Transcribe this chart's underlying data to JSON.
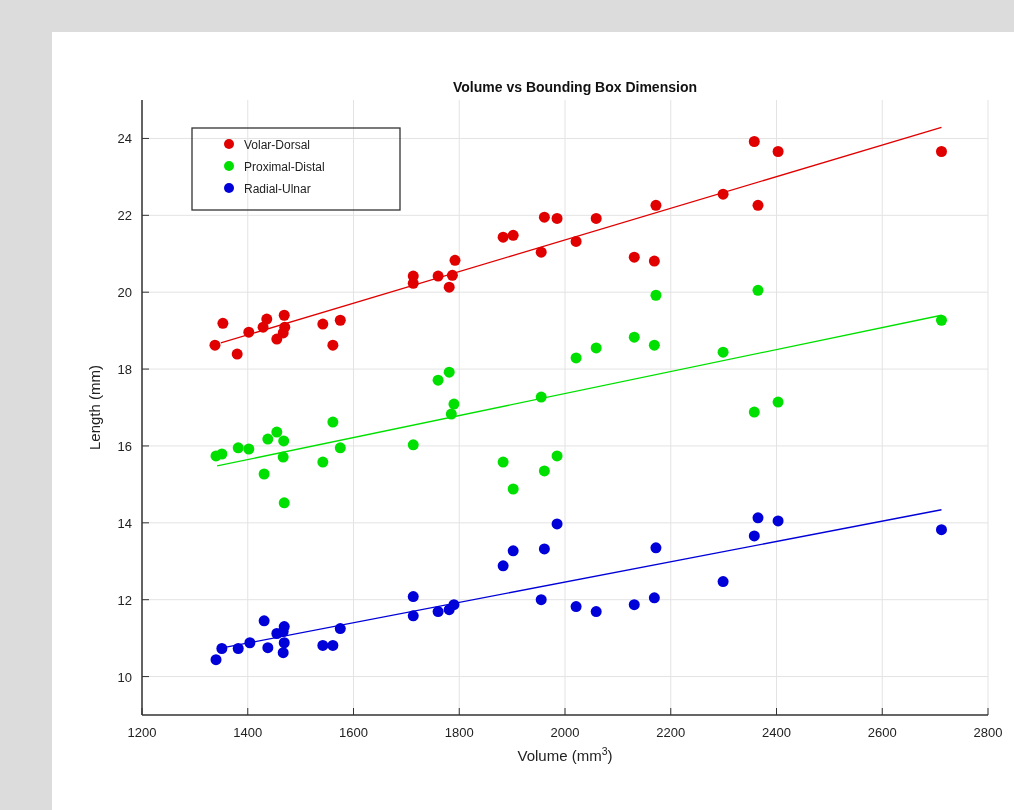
{
  "chart_data": {
    "type": "scatter",
    "title": "Volume vs Bounding Box Dimension",
    "xlabel": "Volume (mm$^{3}$)",
    "ylabel": "Length (mm)",
    "xlim": [
      1200,
      2800
    ],
    "xticks": [
      1200,
      1400,
      1600,
      1800,
      2000,
      2200,
      2400,
      2600,
      2800
    ],
    "ylim": [
      9,
      25
    ],
    "yticks": [
      10,
      12,
      14,
      16,
      18,
      20,
      22,
      24
    ],
    "grid": true,
    "legend": "top left",
    "series": [
      {
        "name": "Volar-Dorsal",
        "color": "#e00000",
        "marker": "circle",
        "x": [
          1338,
          1353,
          1380,
          1402,
          1429,
          1436,
          1455,
          1467,
          1470,
          1469,
          1542,
          1561,
          1575,
          1713,
          1713,
          1760,
          1781,
          1787,
          1792,
          1883,
          1902,
          1961,
          1985,
          1955,
          2021,
          2059,
          2172,
          2131,
          2169,
          2299,
          2358,
          2365,
          2403,
          2712
        ],
        "values": [
          18.62,
          19.19,
          18.39,
          18.96,
          19.09,
          19.3,
          18.78,
          18.94,
          19.09,
          19.4,
          19.17,
          18.62,
          19.27,
          20.42,
          20.23,
          20.42,
          20.13,
          20.44,
          20.83,
          21.43,
          21.48,
          21.95,
          21.92,
          21.04,
          21.32,
          21.92,
          22.26,
          20.91,
          20.81,
          22.55,
          23.92,
          22.26,
          23.66,
          23.66
        ]
      },
      {
        "name": "Proximal-Distal",
        "color": "#00e000",
        "marker": "circle",
        "x": [
          1340,
          1351,
          1382,
          1402,
          1431,
          1438,
          1455,
          1468,
          1467,
          1469,
          1542,
          1561,
          1575,
          1713,
          1760,
          1781,
          1790,
          1785,
          1883,
          1902,
          1961,
          1985,
          1955,
          2021,
          2059,
          2131,
          2169,
          2172,
          2299,
          2358,
          2403,
          2365,
          2712
        ],
        "values": [
          15.74,
          15.79,
          15.95,
          15.92,
          15.27,
          16.18,
          16.36,
          16.13,
          15.71,
          14.52,
          15.58,
          16.62,
          15.95,
          16.03,
          17.71,
          17.92,
          17.09,
          16.83,
          15.58,
          14.88,
          15.35,
          15.74,
          17.27,
          18.29,
          18.55,
          18.83,
          18.62,
          19.92,
          18.44,
          16.88,
          17.14,
          20.05,
          19.27
        ]
      },
      {
        "name": "Radial-Ulnar",
        "color": "#0000d8",
        "marker": "circle",
        "x": [
          1340,
          1351,
          1382,
          1404,
          1431,
          1438,
          1455,
          1469,
          1467,
          1469,
          1467,
          1542,
          1561,
          1575,
          1713,
          1713,
          1760,
          1781,
          1790,
          1883,
          1902,
          1961,
          1985,
          1955,
          2021,
          2059,
          2131,
          2169,
          2172,
          2299,
          2358,
          2365,
          2403,
          2712
        ],
        "values": [
          10.44,
          10.73,
          10.73,
          10.88,
          11.45,
          10.75,
          11.12,
          11.3,
          11.17,
          10.88,
          10.62,
          10.81,
          10.81,
          11.25,
          12.08,
          11.58,
          11.69,
          11.74,
          11.87,
          12.88,
          13.27,
          13.32,
          13.97,
          12.0,
          11.82,
          11.69,
          11.87,
          12.05,
          13.35,
          12.47,
          13.66,
          14.13,
          14.05,
          13.82
        ]
      },
      {
        "type": "line",
        "color": "#e00000",
        "x": [
          1349,
          2712
        ],
        "values": [
          18.68,
          24.29
        ]
      },
      {
        "type": "line",
        "color": "#00e000",
        "x": [
          1342,
          2712
        ],
        "values": [
          15.48,
          19.4
        ]
      },
      {
        "type": "line",
        "color": "#0000d8",
        "x": [
          1342,
          2712
        ],
        "values": [
          10.72,
          14.34
        ]
      }
    ]
  }
}
